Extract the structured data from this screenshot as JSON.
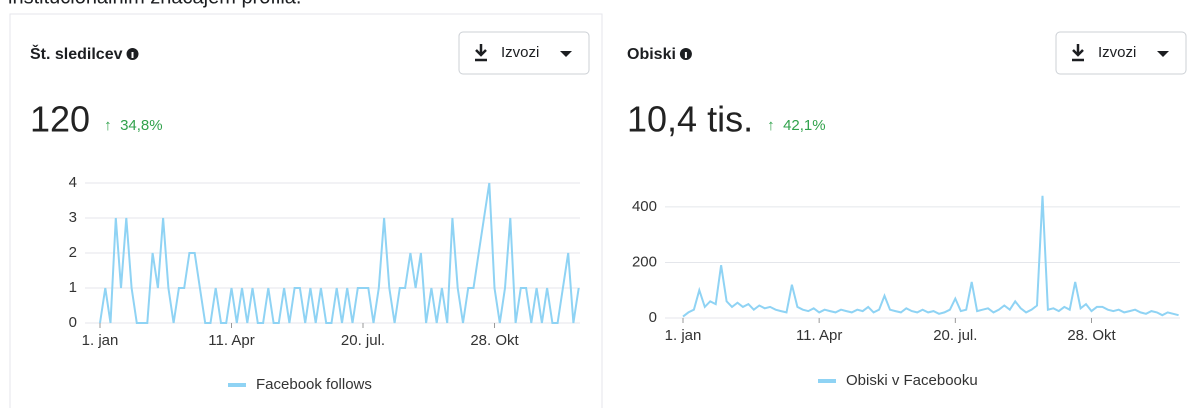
{
  "caption": "institucionalnim značajem profila.",
  "chart_data": [
    {
      "type": "line",
      "title": "Št. sledilcev",
      "button": "Izvozi",
      "total": "120",
      "change": "34,8%",
      "xlim": [
        0,
        365
      ],
      "xticks": [
        {
          "value": 0,
          "label": "1. jan"
        },
        {
          "value": 100,
          "label": "11. Apr"
        },
        {
          "value": 200,
          "label": "20. jul."
        },
        {
          "value": 300,
          "label": "28. Okt"
        }
      ],
      "ylim": [
        0,
        4
      ],
      "yticks": [
        0,
        1,
        2,
        3,
        4
      ],
      "grid": true,
      "series": [
        {
          "name": "Facebook follows",
          "color": "#8fd3f4",
          "x": [
            0,
            4,
            8,
            12,
            16,
            20,
            24,
            28,
            32,
            36,
            40,
            44,
            48,
            52,
            56,
            60,
            64,
            68,
            72,
            76,
            80,
            84,
            88,
            92,
            96,
            100,
            104,
            108,
            112,
            116,
            120,
            124,
            128,
            132,
            136,
            140,
            144,
            148,
            152,
            156,
            160,
            164,
            168,
            172,
            176,
            180,
            184,
            188,
            192,
            196,
            200,
            204,
            208,
            212,
            216,
            220,
            224,
            228,
            232,
            236,
            240,
            244,
            248,
            252,
            256,
            260,
            264,
            268,
            272,
            276,
            280,
            284,
            288,
            292,
            296,
            300,
            304,
            308,
            312,
            316,
            320,
            324,
            328,
            332,
            336,
            340,
            344,
            348,
            352,
            356,
            360,
            364
          ],
          "values": [
            0,
            1,
            0,
            3,
            1,
            3,
            1,
            0,
            0,
            0,
            2,
            1,
            3,
            1,
            0,
            1,
            1,
            2,
            2,
            1,
            0,
            0,
            1,
            0,
            0,
            1,
            0,
            1,
            0,
            1,
            0,
            0,
            1,
            0,
            0,
            1,
            0,
            1,
            1,
            0,
            1,
            0,
            1,
            0,
            0,
            1,
            0,
            1,
            0,
            1,
            1,
            1,
            0,
            1,
            3,
            1,
            0,
            1,
            1,
            2,
            1,
            2,
            0,
            1,
            0,
            1,
            0,
            3,
            1,
            0,
            1,
            1,
            2,
            3,
            4,
            1,
            0,
            1,
            3,
            0,
            1,
            1,
            0,
            1,
            0,
            1,
            0,
            0,
            1,
            2,
            0,
            1
          ]
        }
      ]
    },
    {
      "type": "line",
      "title": "Obiski",
      "button": "Izvozi",
      "total": "10,4 tis.",
      "change": "42,1%",
      "xlim": [
        0,
        365
      ],
      "xticks": [
        {
          "value": 0,
          "label": "1. jan"
        },
        {
          "value": 100,
          "label": "11. Apr"
        },
        {
          "value": 200,
          "label": "20. jul."
        },
        {
          "value": 300,
          "label": "28. Okt"
        }
      ],
      "ylim": [
        0,
        450
      ],
      "yticks": [
        0,
        200,
        400
      ],
      "grid": true,
      "series": [
        {
          "name": "Obiski v Facebooku",
          "color": "#8fd3f4",
          "x": [
            0,
            4,
            8,
            12,
            16,
            20,
            24,
            28,
            32,
            36,
            40,
            44,
            48,
            52,
            56,
            60,
            64,
            68,
            72,
            76,
            80,
            84,
            88,
            92,
            96,
            100,
            104,
            108,
            112,
            116,
            120,
            124,
            128,
            132,
            136,
            140,
            144,
            148,
            152,
            156,
            160,
            164,
            168,
            172,
            176,
            180,
            184,
            188,
            192,
            196,
            200,
            204,
            208,
            212,
            216,
            220,
            224,
            228,
            232,
            236,
            240,
            244,
            248,
            252,
            256,
            260,
            264,
            268,
            272,
            276,
            280,
            284,
            288,
            292,
            296,
            300,
            304,
            308,
            312,
            316,
            320,
            324,
            328,
            332,
            336,
            340,
            344,
            348,
            352,
            356,
            360,
            364
          ],
          "values": [
            5,
            20,
            30,
            100,
            40,
            60,
            50,
            190,
            60,
            40,
            55,
            40,
            50,
            30,
            45,
            35,
            40,
            30,
            25,
            20,
            120,
            40,
            30,
            25,
            35,
            20,
            30,
            25,
            20,
            30,
            25,
            20,
            30,
            25,
            40,
            20,
            30,
            80,
            30,
            25,
            20,
            35,
            25,
            20,
            30,
            20,
            25,
            15,
            20,
            30,
            70,
            25,
            30,
            130,
            25,
            30,
            35,
            20,
            30,
            45,
            30,
            60,
            35,
            20,
            30,
            45,
            440,
            30,
            35,
            25,
            40,
            30,
            130,
            35,
            50,
            25,
            40,
            40,
            30,
            25,
            30,
            20,
            25,
            30,
            20,
            15,
            25,
            20,
            10,
            20,
            15,
            10
          ]
        }
      ]
    }
  ]
}
